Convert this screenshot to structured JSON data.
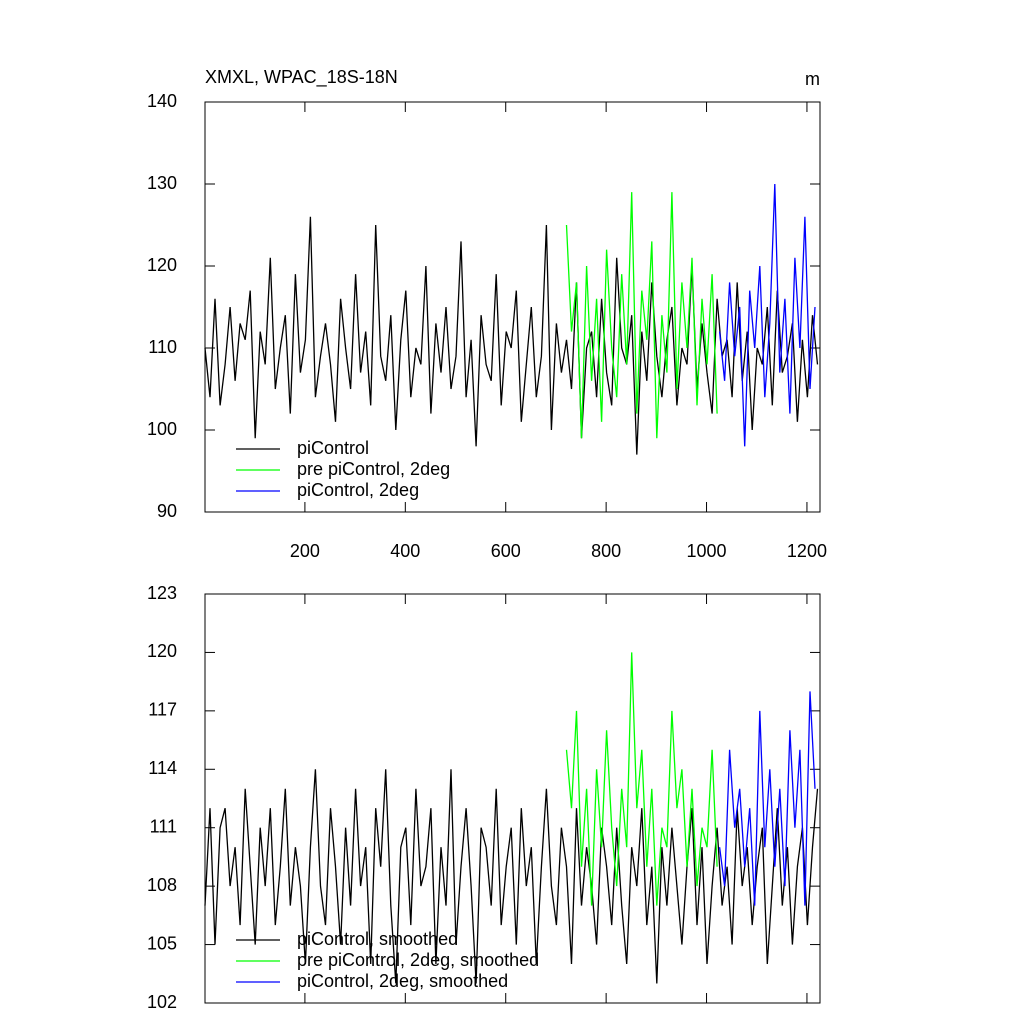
{
  "chart_data": [
    {
      "type": "line",
      "title": "XMXL, WPAC_18S-18N",
      "units_label": "m",
      "xlim": [
        1,
        1226
      ],
      "ylim": [
        90,
        140
      ],
      "xticks": [
        200,
        400,
        600,
        800,
        1000,
        1200
      ],
      "yticks": [
        90,
        100,
        110,
        120,
        130,
        140
      ],
      "legend": "lower left",
      "series": [
        {
          "name": "piControl",
          "color": "#000000",
          "x": [
            1,
            11,
            21,
            31,
            41,
            51,
            61,
            71,
            81,
            91,
            101,
            111,
            121,
            131,
            141,
            151,
            161,
            171,
            181,
            191,
            201,
            211,
            221,
            231,
            241,
            251,
            261,
            271,
            281,
            291,
            301,
            311,
            321,
            331,
            341,
            351,
            361,
            371,
            381,
            391,
            401,
            411,
            421,
            431,
            441,
            451,
            461,
            471,
            481,
            491,
            501,
            511,
            521,
            531,
            541,
            551,
            561,
            571,
            581,
            591,
            601,
            611,
            621,
            631,
            641,
            651,
            661,
            671,
            681,
            691,
            701,
            711,
            721,
            731,
            741,
            751,
            761,
            771,
            781,
            791,
            801,
            811,
            821,
            831,
            841,
            851,
            861,
            871,
            881,
            891,
            901,
            911,
            921,
            931,
            941,
            951,
            961,
            971,
            981,
            991,
            1001,
            1011,
            1021,
            1031,
            1041,
            1051,
            1061,
            1071,
            1081,
            1091,
            1101,
            1111,
            1121,
            1131,
            1141,
            1151,
            1161,
            1171,
            1181,
            1191,
            1201,
            1211,
            1221
          ],
          "values": [
            110,
            104,
            116,
            103,
            108,
            115,
            106,
            113,
            111,
            117,
            99,
            112,
            108,
            121,
            105,
            110,
            114,
            102,
            119,
            107,
            111,
            126,
            104,
            109,
            113,
            108,
            101,
            116,
            110,
            105,
            119,
            107,
            112,
            103,
            125,
            109,
            106,
            114,
            100,
            111,
            117,
            104,
            110,
            108,
            120,
            102,
            113,
            107,
            115,
            105,
            109,
            123,
            104,
            111,
            98,
            114,
            108,
            106,
            119,
            103,
            112,
            110,
            117,
            101,
            108,
            115,
            104,
            109,
            125,
            100,
            113,
            107,
            111,
            105,
            118,
            99,
            110,
            112,
            104,
            116,
            107,
            103,
            121,
            110,
            108,
            114,
            97,
            112,
            106,
            118,
            109,
            104,
            111,
            115,
            103,
            110,
            108,
            120,
            105,
            113,
            107,
            102,
            116,
            109,
            111,
            104,
            118,
            106,
            112,
            100,
            110,
            108,
            115,
            103,
            117,
            107,
            109,
            113,
            101,
            111,
            104,
            114,
            108
          ]
        },
        {
          "name": "pre piControl, 2deg",
          "color": "#00ff00",
          "x": [
            721,
            731,
            741,
            751,
            761,
            771,
            781,
            791,
            801,
            811,
            821,
            831,
            841,
            851,
            861,
            871,
            881,
            891,
            901,
            911,
            921,
            931,
            941,
            951,
            961,
            971,
            981,
            991,
            1001,
            1011,
            1021
          ],
          "values": [
            125,
            112,
            118,
            99,
            120,
            106,
            116,
            101,
            122,
            110,
            104,
            119,
            108,
            129,
            102,
            117,
            111,
            123,
            99,
            114,
            107,
            129,
            105,
            118,
            110,
            121,
            103,
            116,
            108,
            119,
            102
          ]
        },
        {
          "name": "piControl, 2deg",
          "color": "#0000ff",
          "x": [
            1026,
            1036,
            1046,
            1056,
            1066,
            1076,
            1086,
            1096,
            1106,
            1116,
            1126,
            1136,
            1146,
            1156,
            1166,
            1176,
            1186,
            1196,
            1206,
            1216
          ],
          "values": [
            112,
            106,
            118,
            109,
            115,
            98,
            117,
            110,
            120,
            104,
            113,
            130,
            107,
            116,
            102,
            121,
            110,
            126,
            105,
            115
          ]
        }
      ]
    },
    {
      "type": "line",
      "xlim": [
        1,
        1226
      ],
      "ylim": [
        102,
        123
      ],
      "xticks": [
        200,
        400,
        600,
        800,
        1000,
        1200
      ],
      "yticks": [
        102,
        105,
        108,
        111,
        114,
        117,
        120,
        123
      ],
      "legend": "lower left",
      "series": [
        {
          "name": "piControl, smoothed",
          "color": "#000000",
          "x": [
            1,
            11,
            21,
            31,
            41,
            51,
            61,
            71,
            81,
            91,
            101,
            111,
            121,
            131,
            141,
            151,
            161,
            171,
            181,
            191,
            201,
            211,
            221,
            231,
            241,
            251,
            261,
            271,
            281,
            291,
            301,
            311,
            321,
            331,
            341,
            351,
            361,
            371,
            381,
            391,
            401,
            411,
            421,
            431,
            441,
            451,
            461,
            471,
            481,
            491,
            501,
            511,
            521,
            531,
            541,
            551,
            561,
            571,
            581,
            591,
            601,
            611,
            621,
            631,
            641,
            651,
            661,
            671,
            681,
            691,
            701,
            711,
            721,
            731,
            741,
            751,
            761,
            771,
            781,
            791,
            801,
            811,
            821,
            831,
            841,
            851,
            861,
            871,
            881,
            891,
            901,
            911,
            921,
            931,
            941,
            951,
            961,
            971,
            981,
            991,
            1001,
            1011,
            1021,
            1031,
            1041,
            1051,
            1061,
            1071,
            1081,
            1091,
            1101,
            1111,
            1121,
            1131,
            1141,
            1151,
            1161,
            1171,
            1181,
            1191,
            1201,
            1211,
            1221
          ],
          "values": [
            107,
            112,
            105,
            111,
            112,
            108,
            110,
            106,
            113,
            109,
            105,
            111,
            108,
            112,
            106,
            109,
            113,
            107,
            110,
            108,
            104,
            110,
            114,
            108,
            106,
            112,
            109,
            105,
            111,
            107,
            113,
            108,
            110,
            104,
            112,
            109,
            114,
            107,
            103,
            110,
            111,
            106,
            113,
            108,
            109,
            112,
            104,
            110,
            107,
            114,
            105,
            109,
            112,
            108,
            103,
            111,
            110,
            107,
            113,
            106,
            109,
            111,
            105,
            112,
            108,
            110,
            104,
            109,
            113,
            108,
            106,
            111,
            109,
            104,
            112,
            107,
            110,
            108,
            105,
            111,
            109,
            106,
            111,
            107,
            104,
            110,
            108,
            112,
            106,
            109,
            103,
            110,
            107,
            111,
            108,
            105,
            109,
            112,
            106,
            110,
            104,
            108,
            111,
            107,
            109,
            105,
            112,
            108,
            110,
            106,
            109,
            111,
            104,
            108,
            112,
            107,
            110,
            105,
            109,
            111,
            106,
            110,
            113
          ]
        },
        {
          "name": "pre piControl, 2deg, smoothed",
          "color": "#00ff00",
          "x": [
            721,
            731,
            741,
            751,
            761,
            771,
            781,
            791,
            801,
            811,
            821,
            831,
            841,
            851,
            861,
            871,
            881,
            891,
            901,
            911,
            921,
            931,
            941,
            951,
            961,
            971,
            981,
            991,
            1001,
            1011,
            1021
          ],
          "values": [
            115,
            112,
            117,
            109,
            113,
            107,
            114,
            110,
            116,
            111,
            108,
            113,
            110,
            120,
            112,
            115,
            109,
            113,
            107,
            111,
            110,
            117,
            112,
            114,
            109,
            113,
            108,
            111,
            110,
            115,
            109
          ]
        },
        {
          "name": "piControl, 2deg, smoothed",
          "color": "#0000ff",
          "x": [
            1026,
            1036,
            1046,
            1056,
            1066,
            1076,
            1086,
            1096,
            1106,
            1116,
            1126,
            1136,
            1146,
            1156,
            1166,
            1176,
            1186,
            1196,
            1206,
            1216
          ],
          "values": [
            110,
            108,
            115,
            111,
            113,
            109,
            112,
            107,
            117,
            110,
            114,
            109,
            113,
            108,
            116,
            111,
            115,
            107,
            118,
            113
          ]
        }
      ]
    }
  ]
}
